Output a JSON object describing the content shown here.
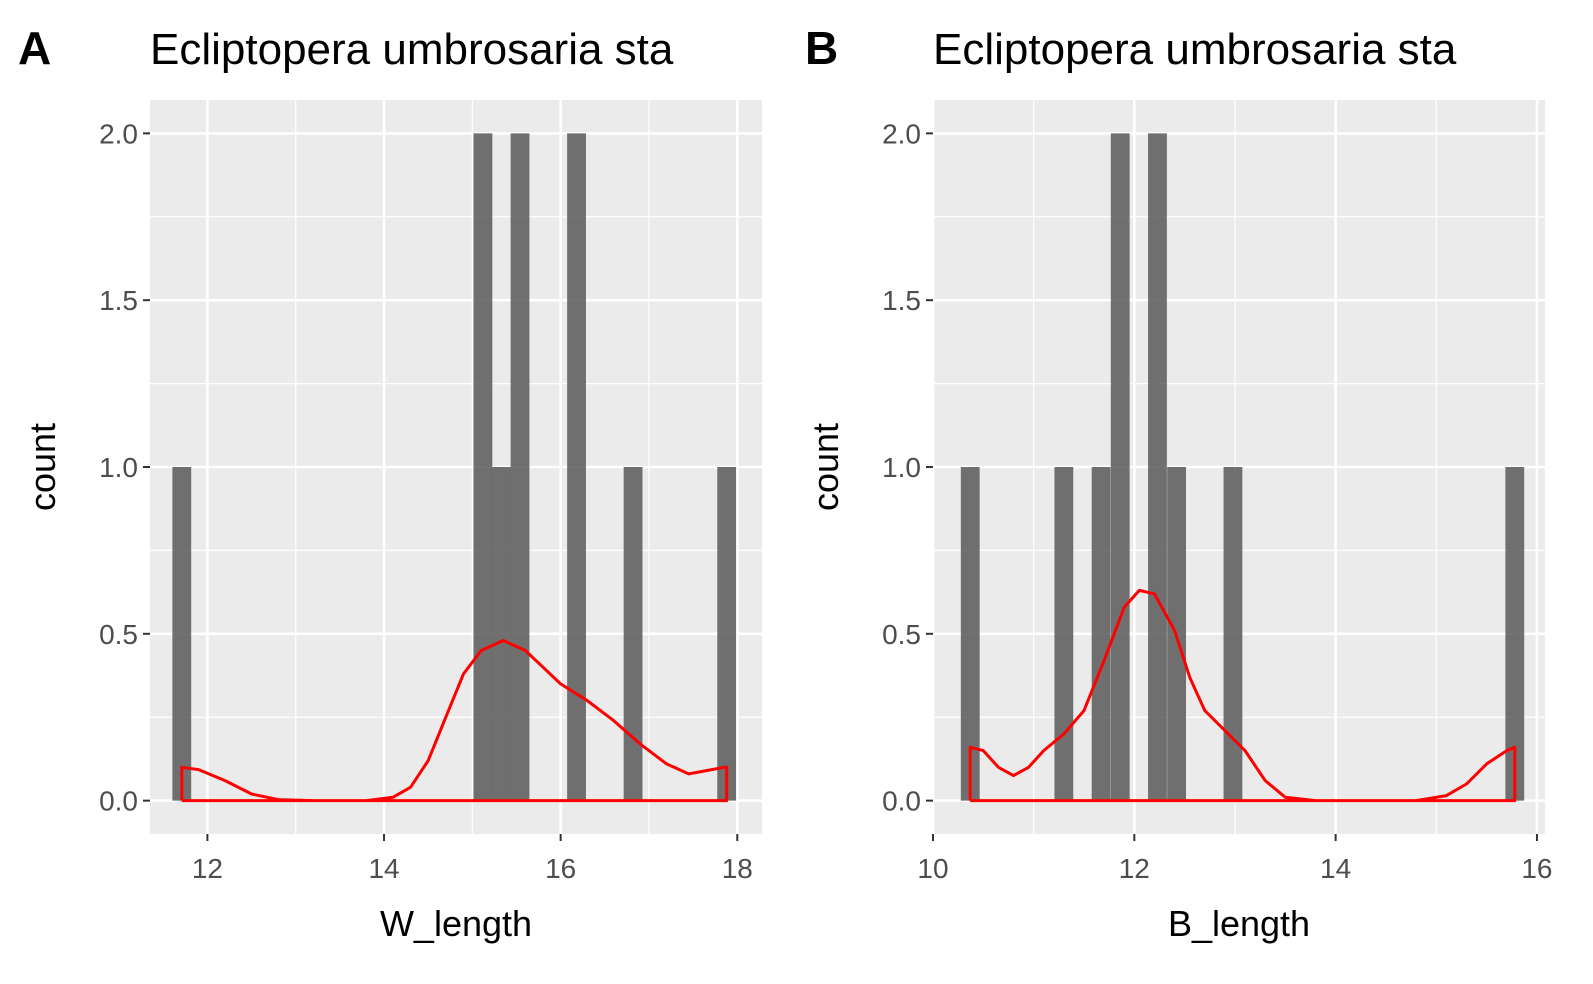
{
  "chart_data": [
    {
      "tag": "A",
      "type": "bar",
      "title": "Ecliptopera umbrosaria sta",
      "xlabel": "W_length",
      "ylabel": "count",
      "xlim": [
        11.35,
        18.28
      ],
      "ylim": [
        -0.1,
        2.1
      ],
      "xticks": [
        12,
        14,
        16,
        18
      ],
      "yticks": [
        0.0,
        0.5,
        1.0,
        1.5,
        2.0
      ],
      "ytick_labels": [
        "0.0",
        "0.5",
        "1.0",
        "1.5",
        "2.0"
      ],
      "bin_width": 0.213,
      "bins": [
        {
          "x": 11.71,
          "count": 1
        },
        {
          "x": 15.12,
          "count": 2
        },
        {
          "x": 15.33,
          "count": 1
        },
        {
          "x": 15.54,
          "count": 2
        },
        {
          "x": 16.18,
          "count": 2
        },
        {
          "x": 16.82,
          "count": 1
        },
        {
          "x": 17.88,
          "count": 1
        }
      ],
      "density_color": "#ff0000",
      "density": [
        [
          11.71,
          0.0
        ],
        [
          11.71,
          0.1
        ],
        [
          11.9,
          0.093
        ],
        [
          12.2,
          0.06
        ],
        [
          12.5,
          0.02
        ],
        [
          12.8,
          0.003
        ],
        [
          13.2,
          0.0
        ],
        [
          13.8,
          0.0
        ],
        [
          14.1,
          0.01
        ],
        [
          14.3,
          0.04
        ],
        [
          14.5,
          0.12
        ],
        [
          14.7,
          0.25
        ],
        [
          14.9,
          0.38
        ],
        [
          15.1,
          0.45
        ],
        [
          15.35,
          0.48
        ],
        [
          15.6,
          0.45
        ],
        [
          15.8,
          0.4
        ],
        [
          16.0,
          0.35
        ],
        [
          16.3,
          0.3
        ],
        [
          16.6,
          0.24
        ],
        [
          16.9,
          0.17
        ],
        [
          17.2,
          0.11
        ],
        [
          17.45,
          0.08
        ],
        [
          17.65,
          0.09
        ],
        [
          17.85,
          0.1
        ],
        [
          17.88,
          0.1
        ],
        [
          17.88,
          0.0
        ],
        [
          11.71,
          0.0
        ]
      ]
    },
    {
      "tag": "B",
      "type": "bar",
      "title": "Ecliptopera umbrosaria sta",
      "xlabel": "B_length",
      "ylabel": "count",
      "xlim": [
        10.0,
        16.08
      ],
      "ylim": [
        -0.1,
        2.1
      ],
      "xticks": [
        10,
        12,
        14,
        16
      ],
      "yticks": [
        0.0,
        0.5,
        1.0,
        1.5,
        2.0
      ],
      "ytick_labels": [
        "0.0",
        "0.5",
        "1.0",
        "1.5",
        "2.0"
      ],
      "bin_width": 0.187,
      "bins": [
        {
          "x": 10.37,
          "count": 1
        },
        {
          "x": 11.3,
          "count": 1
        },
        {
          "x": 11.67,
          "count": 1
        },
        {
          "x": 11.86,
          "count": 2
        },
        {
          "x": 12.23,
          "count": 2
        },
        {
          "x": 12.42,
          "count": 1
        },
        {
          "x": 12.98,
          "count": 1
        },
        {
          "x": 15.78,
          "count": 1
        }
      ],
      "density_color": "#ff0000",
      "density": [
        [
          10.37,
          0.0
        ],
        [
          10.37,
          0.16
        ],
        [
          10.5,
          0.15
        ],
        [
          10.65,
          0.1
        ],
        [
          10.8,
          0.075
        ],
        [
          10.95,
          0.1
        ],
        [
          11.1,
          0.15
        ],
        [
          11.3,
          0.2
        ],
        [
          11.5,
          0.27
        ],
        [
          11.7,
          0.42
        ],
        [
          11.9,
          0.58
        ],
        [
          12.05,
          0.63
        ],
        [
          12.2,
          0.62
        ],
        [
          12.4,
          0.51
        ],
        [
          12.55,
          0.37
        ],
        [
          12.7,
          0.27
        ],
        [
          12.9,
          0.21
        ],
        [
          13.1,
          0.15
        ],
        [
          13.3,
          0.06
        ],
        [
          13.5,
          0.01
        ],
        [
          13.8,
          0.0
        ],
        [
          14.8,
          0.0
        ],
        [
          15.1,
          0.015
        ],
        [
          15.3,
          0.05
        ],
        [
          15.5,
          0.11
        ],
        [
          15.7,
          0.15
        ],
        [
          15.78,
          0.16
        ],
        [
          15.78,
          0.0
        ],
        [
          10.37,
          0.0
        ]
      ]
    }
  ]
}
